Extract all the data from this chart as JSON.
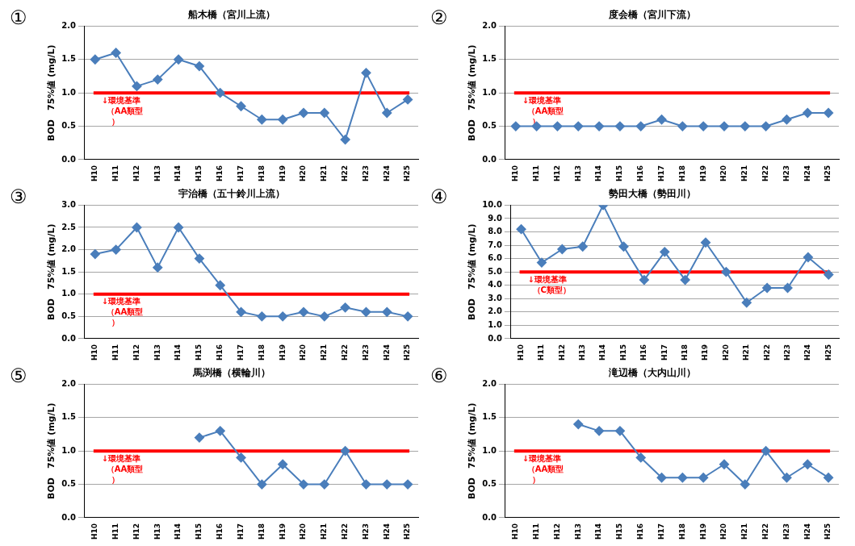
{
  "chart_data": [
    {
      "type": "line",
      "title": "船木橋（宮川上流）",
      "ylabel": "BOD　75%値 (mg/L)",
      "annotations": [
        "①"
      ],
      "categories": [
        "H10",
        "H11",
        "H12",
        "H13",
        "H14",
        "H15",
        "H16",
        "H17",
        "H18",
        "H19",
        "H20",
        "H21",
        "H22",
        "H23",
        "H24",
        "H25"
      ],
      "series": [
        {
          "color": "#4a7ebb",
          "values": [
            1.5,
            1.6,
            1.1,
            1.2,
            1.5,
            1.4,
            1.0,
            0.8,
            0.6,
            0.6,
            0.7,
            0.7,
            0.3,
            1.3,
            0.7,
            0.9
          ]
        }
      ],
      "ylim": [
        0,
        2
      ],
      "yticks": [
        {
          "value": 0,
          "label": "0.0"
        },
        {
          "value": 0.5,
          "label": "0.5"
        },
        {
          "value": 1,
          "label": "1.0"
        },
        {
          "value": 1.5,
          "label": "1.5"
        },
        {
          "value": 2,
          "label": "2.0"
        }
      ],
      "grid": "y",
      "marker": "diamond",
      "ref_lines": [
        {
          "axis": "y",
          "value": 1,
          "label": "↓環境基準（AA類型）",
          "color": "#ff0000"
        }
      ]
    },
    {
      "type": "line",
      "title": "度会橋（宮川下流）",
      "ylabel": "BOD　75%値 (mg/L)",
      "annotations": [
        "②"
      ],
      "categories": [
        "H10",
        "H11",
        "H12",
        "H13",
        "H14",
        "H15",
        "H16",
        "H17",
        "H18",
        "H19",
        "H20",
        "H21",
        "H22",
        "H23",
        "H24",
        "H25"
      ],
      "series": [
        {
          "color": "#4a7ebb",
          "values": [
            0.5,
            0.5,
            0.5,
            0.5,
            0.5,
            0.5,
            0.5,
            0.6,
            0.5,
            0.5,
            0.5,
            0.5,
            0.5,
            0.6,
            0.7,
            0.7
          ]
        }
      ],
      "ylim": [
        0,
        2
      ],
      "yticks": [
        {
          "value": 0,
          "label": "0.0"
        },
        {
          "value": 0.5,
          "label": "0.5"
        },
        {
          "value": 1,
          "label": "1.0"
        },
        {
          "value": 1.5,
          "label": "1.5"
        },
        {
          "value": 2,
          "label": "2.0"
        }
      ],
      "grid": "y",
      "marker": "diamond",
      "ref_lines": [
        {
          "axis": "y",
          "value": 1,
          "label": "↓環境基準（AA類型）",
          "color": "#ff0000"
        }
      ]
    },
    {
      "type": "line",
      "title": "宇治橋（五十鈴川上流）",
      "ylabel": "BOD　75%値 (mg/L)",
      "annotations": [
        "③"
      ],
      "categories": [
        "H10",
        "H11",
        "H12",
        "H13",
        "H14",
        "H15",
        "H16",
        "H17",
        "H18",
        "H19",
        "H20",
        "H21",
        "H22",
        "H23",
        "H24",
        "H25"
      ],
      "series": [
        {
          "color": "#4a7ebb",
          "values": [
            1.9,
            2.0,
            2.5,
            1.6,
            2.5,
            1.8,
            1.2,
            0.6,
            0.5,
            0.5,
            0.6,
            0.5,
            0.7,
            0.6,
            0.6,
            0.5
          ]
        }
      ],
      "ylim": [
        0,
        3
      ],
      "yticks": [
        {
          "value": 0,
          "label": "0.0"
        },
        {
          "value": 0.5,
          "label": "0.5"
        },
        {
          "value": 1,
          "label": "1.0"
        },
        {
          "value": 1.5,
          "label": "1.5"
        },
        {
          "value": 2,
          "label": "2.0"
        },
        {
          "value": 2.5,
          "label": "2.5"
        },
        {
          "value": 3,
          "label": "3.0"
        }
      ],
      "grid": "y",
      "marker": "diamond",
      "ref_lines": [
        {
          "axis": "y",
          "value": 1,
          "label": "↓環境基準（AA類型）",
          "color": "#ff0000"
        }
      ]
    },
    {
      "type": "line",
      "title": "勢田大橋（勢田川）",
      "ylabel": "BOD　75%値 (mg/L)",
      "annotations": [
        "④"
      ],
      "categories": [
        "H10",
        "H11",
        "H12",
        "H13",
        "H14",
        "H15",
        "H16",
        "H17",
        "H18",
        "H19",
        "H20",
        "H21",
        "H22",
        "H23",
        "H24",
        "H25"
      ],
      "series": [
        {
          "color": "#4a7ebb",
          "values": [
            8.2,
            5.7,
            6.7,
            6.9,
            10.0,
            6.9,
            4.4,
            6.5,
            4.4,
            7.2,
            5.0,
            2.7,
            3.8,
            3.8,
            6.1,
            4.8
          ]
        }
      ],
      "ylim": [
        0,
        10
      ],
      "yticks": [
        {
          "value": 0,
          "label": "0.0"
        },
        {
          "value": 1,
          "label": "1.0"
        },
        {
          "value": 2,
          "label": "2.0"
        },
        {
          "value": 3,
          "label": "3.0"
        },
        {
          "value": 4,
          "label": "4.0"
        },
        {
          "value": 5,
          "label": "5.0"
        },
        {
          "value": 6,
          "label": "6.0"
        },
        {
          "value": 7,
          "label": "7.0"
        },
        {
          "value": 8,
          "label": "8.0"
        },
        {
          "value": 9,
          "label": "9.0"
        },
        {
          "value": 10,
          "label": "10.0"
        }
      ],
      "grid": "y",
      "marker": "diamond",
      "ref_lines": [
        {
          "axis": "y",
          "value": 5,
          "label": "↓環境基準（C類型）",
          "color": "#ff0000"
        }
      ]
    },
    {
      "type": "line",
      "title": "馬渕橋（横輪川）",
      "ylabel": "BOD　75%値 (mg/L)",
      "annotations": [
        "⑤"
      ],
      "categories": [
        "H10",
        "H11",
        "H12",
        "H13",
        "H14",
        "H15",
        "H16",
        "H17",
        "H18",
        "H19",
        "H20",
        "H21",
        "H22",
        "H23",
        "H24",
        "H25"
      ],
      "series": [
        {
          "color": "#4a7ebb",
          "values": [
            null,
            null,
            null,
            null,
            null,
            1.2,
            1.3,
            0.9,
            0.5,
            0.8,
            0.5,
            0.5,
            1.0,
            0.5,
            0.5,
            0.5
          ]
        }
      ],
      "ylim": [
        0,
        2
      ],
      "yticks": [
        {
          "value": 0,
          "label": "0.0"
        },
        {
          "value": 0.5,
          "label": "0.5"
        },
        {
          "value": 1,
          "label": "1.0"
        },
        {
          "value": 1.5,
          "label": "1.5"
        },
        {
          "value": 2,
          "label": "2.0"
        }
      ],
      "grid": "y",
      "marker": "diamond",
      "ref_lines": [
        {
          "axis": "y",
          "value": 1,
          "label": "↓環境基準（AA類型）",
          "color": "#ff0000"
        }
      ]
    },
    {
      "type": "line",
      "title": "滝辺橋（大内山川）",
      "ylabel": "BOD　75%値 (mg/L)",
      "annotations": [
        "⑥"
      ],
      "categories": [
        "H10",
        "H11",
        "H12",
        "H13",
        "H14",
        "H15",
        "H16",
        "H17",
        "H18",
        "H19",
        "H20",
        "H21",
        "H22",
        "H23",
        "H24",
        "H25"
      ],
      "series": [
        {
          "color": "#4a7ebb",
          "values": [
            null,
            null,
            null,
            1.4,
            1.3,
            1.3,
            0.9,
            0.6,
            0.6,
            0.6,
            0.8,
            0.5,
            1.0,
            0.6,
            0.8,
            0.6
          ]
        }
      ],
      "ylim": [
        0,
        2
      ],
      "yticks": [
        {
          "value": 0,
          "label": "0.0"
        },
        {
          "value": 0.5,
          "label": "0.5"
        },
        {
          "value": 1,
          "label": "1.0"
        },
        {
          "value": 1.5,
          "label": "1.5"
        },
        {
          "value": 2,
          "label": "2.0"
        }
      ],
      "grid": "y",
      "marker": "diamond",
      "ref_lines": [
        {
          "axis": "y",
          "value": 1,
          "label": "↓環境基準（AA類型）",
          "color": "#ff0000"
        }
      ]
    }
  ]
}
